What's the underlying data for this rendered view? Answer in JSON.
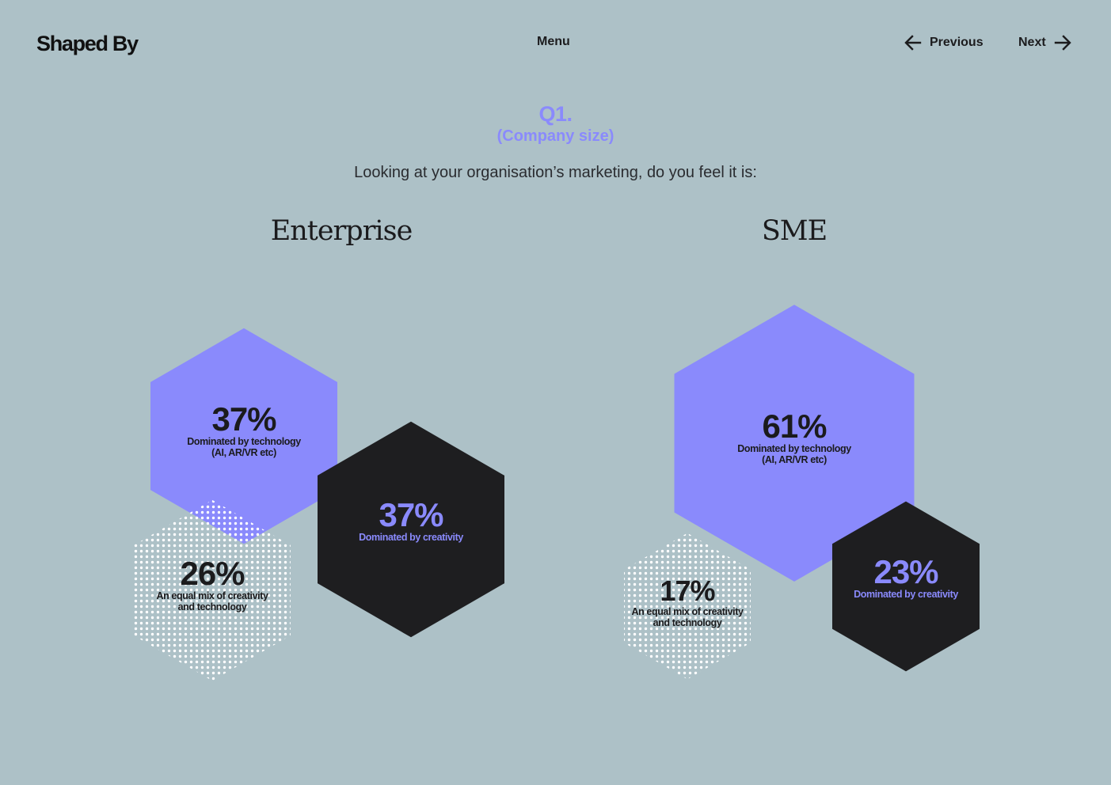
{
  "header": {
    "logo": "Shaped By",
    "menu_label": "Menu",
    "previous_label": "Previous",
    "next_label": "Next"
  },
  "question": {
    "number": "Q1.",
    "subtitle": "(Company size)",
    "text": "Looking at your organisation’s marketing, do you feel it is:"
  },
  "colors": {
    "background": "#adc1c7",
    "technology": "#8a8afc",
    "creativity": "#1e1e20",
    "mix_dots": "#ffffff",
    "text_dark": "#1b1b1d"
  },
  "chart_data": [
    {
      "type": "bubble-hexagon",
      "title": "Enterprise",
      "segments": [
        {
          "value": 37,
          "label": "37%",
          "caption": [
            "Dominated by technology",
            "(AI, AR/VR etc)"
          ],
          "color": "#8a8afc"
        },
        {
          "value": 37,
          "label": "37%",
          "caption": [
            "Dominated by creativity"
          ],
          "color": "#1e1e20"
        },
        {
          "value": 26,
          "label": "26%",
          "caption": [
            "An equal mix of creativity",
            "and technology"
          ],
          "color": "#ffffff"
        }
      ]
    },
    {
      "type": "bubble-hexagon",
      "title": "SME",
      "segments": [
        {
          "value": 61,
          "label": "61%",
          "caption": [
            "Dominated by technology",
            "(AI, AR/VR etc)"
          ],
          "color": "#8a8afc"
        },
        {
          "value": 23,
          "label": "23%",
          "caption": [
            "Dominated by creativity"
          ],
          "color": "#1e1e20"
        },
        {
          "value": 17,
          "label": "17%",
          "caption": [
            "An equal mix of creativity",
            "and technology"
          ],
          "color": "#ffffff"
        }
      ]
    }
  ]
}
